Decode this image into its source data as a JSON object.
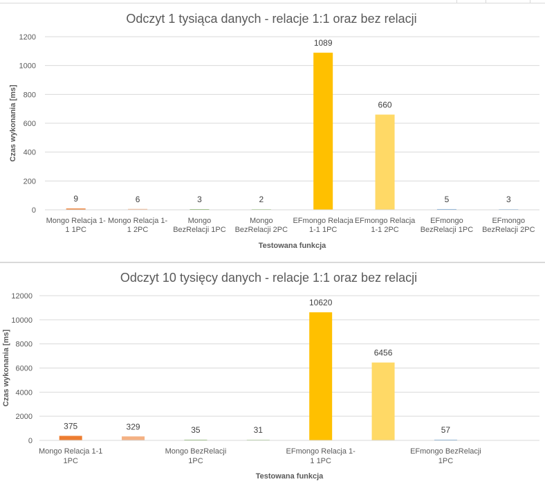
{
  "chart_data": [
    {
      "type": "bar",
      "title": "Odczyt 1 tysiąca danych - relacje 1:1 oraz bez relacji",
      "xlabel": "Testowana funkcja",
      "ylabel": "Czas wykonania [ms]",
      "ylim": [
        0,
        1200
      ],
      "yticks": [
        0,
        200,
        400,
        600,
        800,
        1000,
        1200
      ],
      "grid": true,
      "categories": [
        [
          "Mongo Relacja 1-",
          "1 1PC"
        ],
        [
          "Mongo Relacja 1-",
          "1 2PC"
        ],
        [
          "Mongo",
          "BezRelacji  1PC"
        ],
        [
          "Mongo",
          "BezRelacji  2PC"
        ],
        [
          "EFmongo Relacja",
          "1-1 1PC"
        ],
        [
          "EFmongo Relacja",
          "1-1 2PC"
        ],
        [
          "EFmongo",
          "BezRelacji 1PC"
        ],
        [
          "EFmongo",
          "BezRelacji 2PC"
        ]
      ],
      "values": [
        9,
        6,
        3,
        2,
        1089,
        660,
        5,
        3
      ],
      "colors": [
        "#ed7d31",
        "#f4b183",
        "#70ad47",
        "#a9d18e",
        "#ffc000",
        "#ffd966",
        "#5b9bd5",
        "#9dc3e6"
      ]
    },
    {
      "type": "bar",
      "title": "Odczyt 10 tysięcy danych - relacje 1:1 oraz bez relacji",
      "xlabel": "Testowana funkcja",
      "ylabel": "Czas wykonania [ms]",
      "ylim": [
        0,
        12000
      ],
      "yticks": [
        0,
        2000,
        4000,
        6000,
        8000,
        10000,
        12000
      ],
      "grid": true,
      "categories": [
        [
          "Mongo Relacja 1-1",
          "1PC"
        ],
        [],
        [
          "Mongo BezRelacji",
          "1PC"
        ],
        [],
        [
          "EFmongo Relacja 1-",
          "1 1PC"
        ],
        [],
        [
          "EFmongo BezRelacji",
          "1PC"
        ],
        []
      ],
      "values": [
        375,
        329,
        35,
        31,
        10620,
        6456,
        57,
        null
      ],
      "colors": [
        "#ed7d31",
        "#f4b183",
        "#70ad47",
        "#a9d18e",
        "#ffc000",
        "#ffd966",
        "#5b9bd5",
        "#9dc3e6"
      ]
    }
  ]
}
